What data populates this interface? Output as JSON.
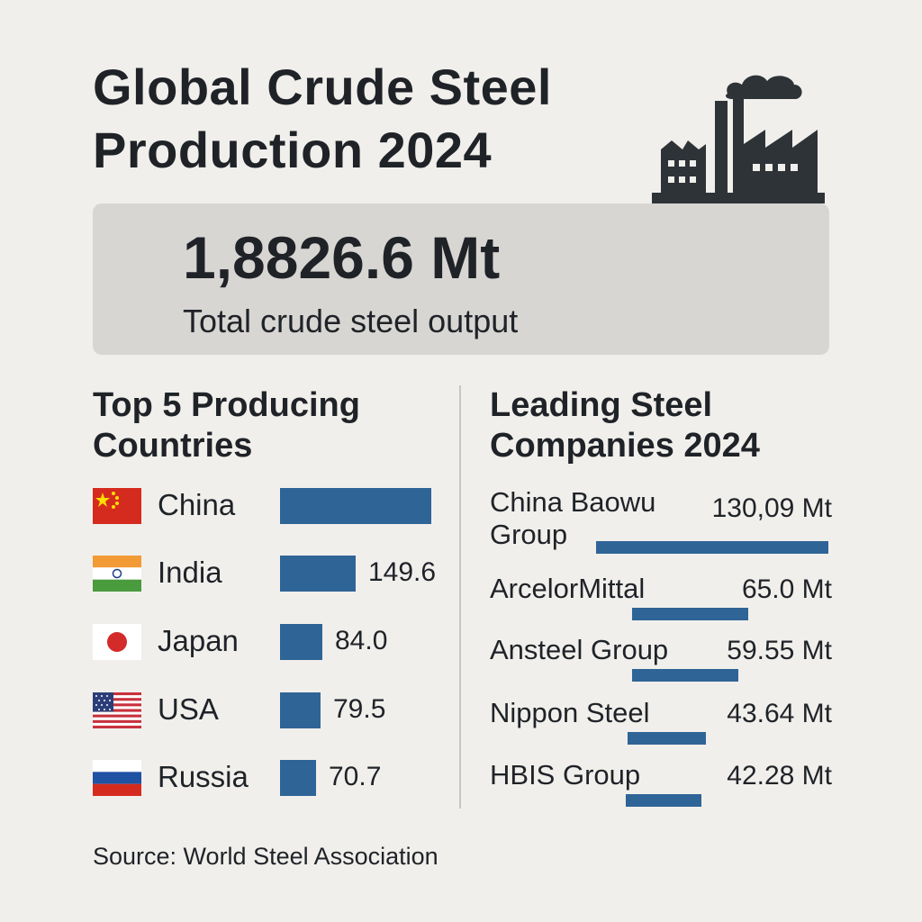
{
  "header": {
    "title_line1": "Global Crude Steel",
    "title_line2": "Production 2024",
    "icon": "factory-icon"
  },
  "total": {
    "value": "1,8826.6 Mt",
    "label": "Total crude steel output"
  },
  "chart_data": [
    {
      "type": "bar",
      "title": "Top 5 Producing Countries",
      "categories": [
        "China",
        "India",
        "Japan",
        "USA",
        "Russia"
      ],
      "values": [
        300,
        149.6,
        84.0,
        79.5,
        70.7
      ],
      "value_labels": [
        "",
        "149.6",
        "84.0",
        "79.5",
        "70.7"
      ],
      "flags": [
        "china-flag-icon",
        "india-flag-icon",
        "japan-flag-icon",
        "usa-flag-icon",
        "russia-flag-icon"
      ],
      "bar_color": "#2f6497"
    },
    {
      "type": "bar",
      "title": "Leading Steel Companies 2024",
      "categories": [
        "China Baowu Group",
        "ArcelorMittal",
        "Ansteel Group",
        "Nippon Steel",
        "HBIS Group"
      ],
      "values": [
        130.09,
        65.0,
        59.55,
        43.64,
        42.28
      ],
      "value_labels": [
        "130,09 Mt",
        "65.0 Mt",
        "59.55 Mt",
        "43.64 Mt",
        "42.28 Mt"
      ],
      "bar_color": "#2f6497"
    }
  ],
  "source": "Source: World Steel Association"
}
